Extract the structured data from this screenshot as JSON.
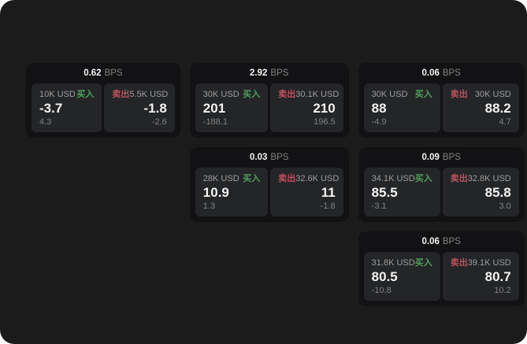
{
  "units": {
    "bps": "BPS"
  },
  "labels": {
    "buy": "买入",
    "sell": "卖出"
  },
  "colors": {
    "app-bg": "#1b1b1c",
    "card-bg": "#121214",
    "panel-bg": "#242527",
    "buy": "#4fa05f",
    "sell": "#c0505e",
    "text-bright": "#f3f3f3",
    "text-dim": "#9e9e9e",
    "text-faint": "#818181"
  },
  "cards": [
    {
      "bps": "0.62",
      "buy": {
        "size": "10K USD",
        "price": "-3.7",
        "delta": "4.3"
      },
      "sell": {
        "size": "5.5K USD",
        "price": "-1.8",
        "delta": "-2.6"
      }
    },
    {
      "bps": "2.92",
      "buy": {
        "size": "30K USD",
        "price": "201",
        "delta": "-188.1"
      },
      "sell": {
        "size": "30.1K USD",
        "price": "210",
        "delta": "196.5"
      }
    },
    {
      "bps": "0.06",
      "buy": {
        "size": "30K USD",
        "price": "88",
        "delta": "-4.9"
      },
      "sell": {
        "size": "30K USD",
        "price": "88.2",
        "delta": "4.7"
      }
    },
    {
      "bps": "0.03",
      "buy": {
        "size": "28K USD",
        "price": "10.9",
        "delta": "1.3"
      },
      "sell": {
        "size": "32.6K USD",
        "price": "11",
        "delta": "-1.8"
      }
    },
    {
      "bps": "0.09",
      "buy": {
        "size": "34.1K USD",
        "price": "85.5",
        "delta": "-3.1"
      },
      "sell": {
        "size": "32.8K USD",
        "price": "85.8",
        "delta": "3.0"
      }
    },
    {
      "bps": "0.06",
      "buy": {
        "size": "31.8K USD",
        "price": "80.5",
        "delta": "-10.8"
      },
      "sell": {
        "size": "39.1K USD",
        "price": "80.7",
        "delta": "10.2"
      }
    }
  ]
}
